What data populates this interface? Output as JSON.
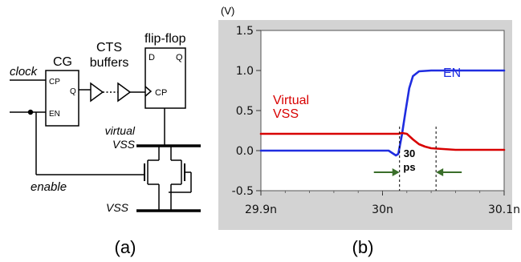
{
  "panel_a": {
    "caption": "(a)",
    "cg_title": "CG",
    "cg_pin_cp": "CP",
    "cg_pin_q": "Q",
    "cg_pin_en": "EN",
    "cts_label_line1": "CTS",
    "cts_label_line2": "buffers",
    "ff_title": "flip-flop",
    "ff_pin_d": "D",
    "ff_pin_q": "Q",
    "ff_pin_cp": "CP",
    "clock_label": "clock",
    "enable_label": "enable",
    "virtual_vss_line1": "virtual",
    "virtual_vss_line2": "VSS",
    "vss_label": "VSS"
  },
  "panel_b": {
    "caption": "(b)",
    "unit_label": "(V)",
    "en_label": "EN",
    "virtual_vss_label_line1": "Virtual",
    "virtual_vss_label_line2": "VSS",
    "delay_value": "30",
    "delay_unit": "ps",
    "colors": {
      "en": "#1f2de0",
      "virtual_vss": "#d80000",
      "plot_bg": "#d3d3d3"
    }
  },
  "chart_data": {
    "type": "line",
    "xlim": [
      29.9,
      30.1
    ],
    "ylim": [
      -0.5,
      1.5
    ],
    "x_ticks": [
      29.9,
      30.0,
      30.1
    ],
    "x_tick_labels": [
      "29.9n",
      "30n",
      "30.1n"
    ],
    "y_ticks": [
      -0.5,
      0.0,
      0.5,
      1.0,
      1.5
    ],
    "y_tick_labels": [
      "-0.5",
      "0.0",
      "0.5",
      "1.0",
      "1.5"
    ],
    "grid": false,
    "series": [
      {
        "name": "EN",
        "color": "#1f2de0",
        "x": [
          29.9,
          30.005,
          30.011,
          30.013,
          30.016,
          30.019,
          30.022,
          30.025,
          30.03,
          30.04,
          30.06,
          30.1
        ],
        "y": [
          0.0,
          0.0,
          -0.06,
          -0.04,
          0.2,
          0.5,
          0.78,
          0.93,
          0.99,
          1.0,
          1.0,
          1.0
        ]
      },
      {
        "name": "Virtual VSS",
        "color": "#d80000",
        "x": [
          29.9,
          30.013,
          30.016,
          30.02,
          30.025,
          30.03,
          30.035,
          30.04,
          30.05,
          30.06,
          30.1
        ],
        "y": [
          0.21,
          0.21,
          0.22,
          0.21,
          0.14,
          0.08,
          0.05,
          0.03,
          0.02,
          0.01,
          0.01
        ]
      }
    ],
    "markers": [
      30.014,
      30.044
    ]
  }
}
